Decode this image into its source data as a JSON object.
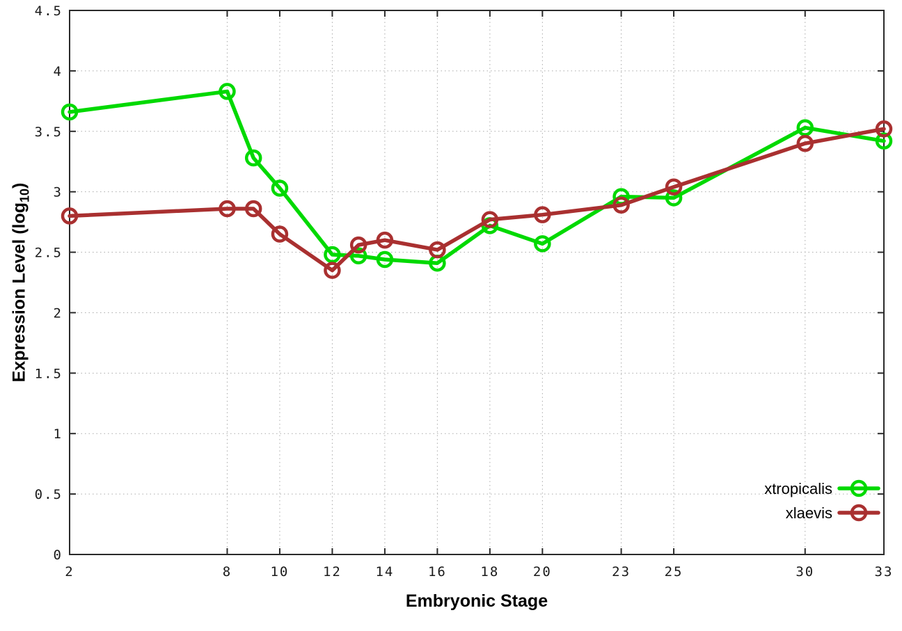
{
  "chart": {
    "xlabel": "Embryonic Stage",
    "ylabel_prefix": "Expression Level (log",
    "ylabel_sub": "10",
    "ylabel_suffix": ")"
  },
  "chart_data": {
    "type": "line",
    "title": "",
    "xlabel": "Embryonic Stage",
    "ylabel": "Expression Level (log10)",
    "xlim": [
      2,
      33
    ],
    "ylim": [
      0,
      4.5
    ],
    "x_ticks": [
      2,
      8,
      10,
      12,
      14,
      16,
      18,
      20,
      23,
      25,
      30,
      33
    ],
    "y_ticks": [
      0,
      0.5,
      1,
      1.5,
      2,
      2.5,
      3,
      3.5,
      4,
      4.5
    ],
    "grid": true,
    "legend_position": "bottom-right",
    "x": [
      2,
      8,
      9,
      10,
      12,
      13,
      14,
      16,
      18,
      20,
      23,
      25,
      30,
      33
    ],
    "series": [
      {
        "name": "xtropicalis",
        "color": "#00d900",
        "values": [
          3.66,
          3.83,
          3.28,
          3.03,
          2.48,
          2.47,
          2.44,
          2.41,
          2.72,
          2.57,
          2.96,
          2.95,
          3.53,
          3.42
        ]
      },
      {
        "name": "xlaevis",
        "color": "#a93030",
        "values": [
          2.8,
          2.86,
          2.86,
          2.65,
          2.35,
          2.56,
          2.6,
          2.52,
          2.77,
          2.81,
          2.89,
          3.04,
          3.4,
          3.52
        ]
      }
    ],
    "colors": {
      "border": "#2a2a2a",
      "grid": "#aaaaaa",
      "tick_label": "#1a1a1a"
    }
  }
}
